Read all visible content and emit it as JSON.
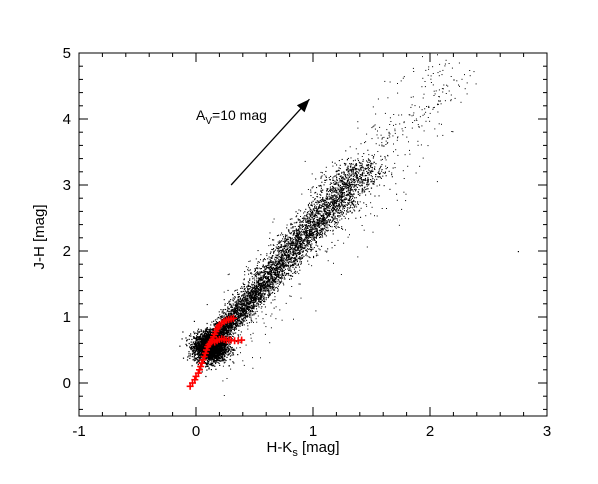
{
  "chart_data": {
    "type": "scatter",
    "title": "",
    "xlabel": "H-K",
    "xlabel_subscript": "s",
    "xlabel_suffix": " [mag]",
    "ylabel": "J-H [mag]",
    "xlim": [
      -1,
      3
    ],
    "ylim": [
      -0.5,
      5
    ],
    "x_ticks": [
      -1,
      0,
      1,
      2,
      3
    ],
    "x_tick_labels": [
      "-1",
      "0",
      "1",
      "2",
      "3"
    ],
    "y_ticks": [
      0,
      1,
      2,
      3,
      4,
      5
    ],
    "y_tick_labels": [
      "0",
      "1",
      "2",
      "3",
      "4",
      "5"
    ],
    "grid": false,
    "colors": {
      "field_stars": "#000000",
      "intrinsic_colors": "#ff0000"
    },
    "series": [
      {
        "marker": "dot",
        "description_points_sample": [
          [
            0.05,
            0.45
          ],
          [
            0.1,
            0.55
          ],
          [
            0.15,
            0.6
          ],
          [
            0.2,
            0.7
          ],
          [
            0.3,
            0.9
          ],
          [
            0.4,
            1.1
          ],
          [
            0.5,
            1.3
          ],
          [
            0.6,
            1.5
          ],
          [
            0.7,
            1.75
          ],
          [
            0.8,
            1.95
          ],
          [
            0.9,
            2.2
          ],
          [
            1.0,
            2.45
          ],
          [
            1.1,
            2.7
          ],
          [
            1.2,
            2.95
          ],
          [
            1.3,
            3.2
          ],
          [
            1.4,
            3.45
          ],
          [
            1.6,
            3.8
          ],
          [
            1.9,
            4.25
          ],
          [
            2.2,
            4.6
          ]
        ]
      },
      {
        "marker": "plus",
        "values": [
          [
            -0.05,
            -0.05
          ],
          [
            -0.03,
            0.0
          ],
          [
            -0.01,
            0.05
          ],
          [
            0.0,
            0.1
          ],
          [
            0.02,
            0.15
          ],
          [
            0.03,
            0.2
          ],
          [
            0.04,
            0.25
          ],
          [
            0.05,
            0.3
          ],
          [
            0.06,
            0.35
          ],
          [
            0.07,
            0.4
          ],
          [
            0.08,
            0.45
          ],
          [
            0.09,
            0.5
          ],
          [
            0.1,
            0.55
          ],
          [
            0.11,
            0.58
          ],
          [
            0.12,
            0.6
          ],
          [
            0.13,
            0.63
          ],
          [
            0.14,
            0.66
          ],
          [
            0.15,
            0.7
          ],
          [
            0.16,
            0.74
          ],
          [
            0.17,
            0.78
          ],
          [
            0.18,
            0.82
          ],
          [
            0.19,
            0.85
          ],
          [
            0.2,
            0.88
          ],
          [
            0.22,
            0.91
          ],
          [
            0.24,
            0.93
          ],
          [
            0.26,
            0.95
          ],
          [
            0.28,
            0.96
          ],
          [
            0.3,
            0.97
          ],
          [
            0.32,
            0.98
          ],
          [
            0.16,
            0.62
          ],
          [
            0.18,
            0.64
          ],
          [
            0.2,
            0.66
          ],
          [
            0.22,
            0.67
          ],
          [
            0.24,
            0.66
          ],
          [
            0.26,
            0.65
          ],
          [
            0.28,
            0.65
          ],
          [
            0.3,
            0.65
          ],
          [
            0.33,
            0.64
          ],
          [
            0.36,
            0.64
          ],
          [
            0.39,
            0.65
          ]
        ]
      }
    ],
    "annotations": [
      {
        "text": "A",
        "subscript": "V",
        "suffix": "=10 mag"
      }
    ],
    "extinction_vector": {
      "from": [
        0.3,
        3.0
      ],
      "to": [
        0.97,
        4.3
      ]
    }
  }
}
